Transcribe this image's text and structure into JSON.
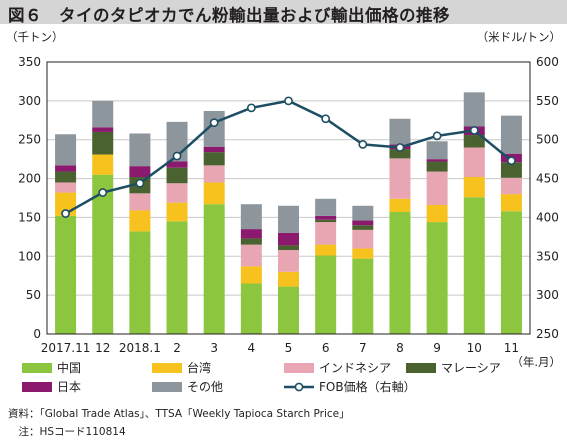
{
  "title": "図６　タイのタピオカでん粉輸出量および輸出価格の推移",
  "footnotes": {
    "source": "資料：「Global Trade Atlas」、TTSA「Weekly Tapioca Starch Price」",
    "note": "　注：HSコード110814"
  },
  "chart_data": {
    "type": "bar",
    "stacked": true,
    "categories": [
      "2017.11",
      "12",
      "2018.1",
      "2",
      "3",
      "4",
      "5",
      "6",
      "7",
      "8",
      "9",
      "10",
      "11"
    ],
    "x_axis_suffix": "（年.月）",
    "y_left": {
      "label": "（千トン）",
      "ylim": [
        0,
        350
      ],
      "ticks": [
        0,
        50,
        100,
        150,
        200,
        250,
        300,
        350
      ]
    },
    "y_right": {
      "label": "（米ドル/トン）",
      "ylim": [
        250,
        600
      ],
      "ticks": [
        250,
        300,
        350,
        400,
        450,
        500,
        550,
        600
      ]
    },
    "grid": true,
    "series": [
      {
        "name": "中国",
        "color": "#8cc63f",
        "values": [
          152,
          205,
          132,
          145,
          167,
          65,
          61,
          101,
          97,
          157,
          144,
          176,
          158
        ]
      },
      {
        "name": "台湾",
        "color": "#f7c11e",
        "values": [
          30,
          26,
          27,
          24,
          28,
          22,
          19,
          14,
          13,
          17,
          22,
          26,
          22
        ]
      },
      {
        "name": "インドネシア",
        "color": "#e8a6b3",
        "values": [
          13,
          0,
          22,
          25,
          22,
          28,
          28,
          29,
          24,
          52,
          43,
          38,
          21
        ]
      },
      {
        "name": "マレーシア",
        "color": "#49622f",
        "values": [
          14,
          29,
          21,
          20,
          17,
          8,
          6,
          3,
          6,
          12,
          13,
          16,
          20
        ]
      },
      {
        "name": "日本",
        "color": "#8b1a6e",
        "values": [
          8,
          6,
          14,
          8,
          7,
          12,
          16,
          5,
          6,
          6,
          3,
          11,
          11
        ]
      },
      {
        "name": "その他",
        "color": "#8c969c",
        "values": [
          40,
          34,
          42,
          51,
          46,
          32,
          35,
          22,
          19,
          33,
          23,
          44,
          49
        ]
      }
    ],
    "line": {
      "name": "FOB価格（右軸）",
      "color": "#1d4e63",
      "axis": "right",
      "values": [
        405,
        432,
        444,
        479,
        522,
        541,
        550,
        527,
        494,
        490,
        505,
        512,
        473
      ]
    },
    "legend": {
      "placement": "bottom",
      "order": [
        "中国",
        "台湾",
        "インドネシア",
        "マレーシア",
        "日本",
        "その他",
        "FOB価格（右軸）"
      ]
    }
  }
}
